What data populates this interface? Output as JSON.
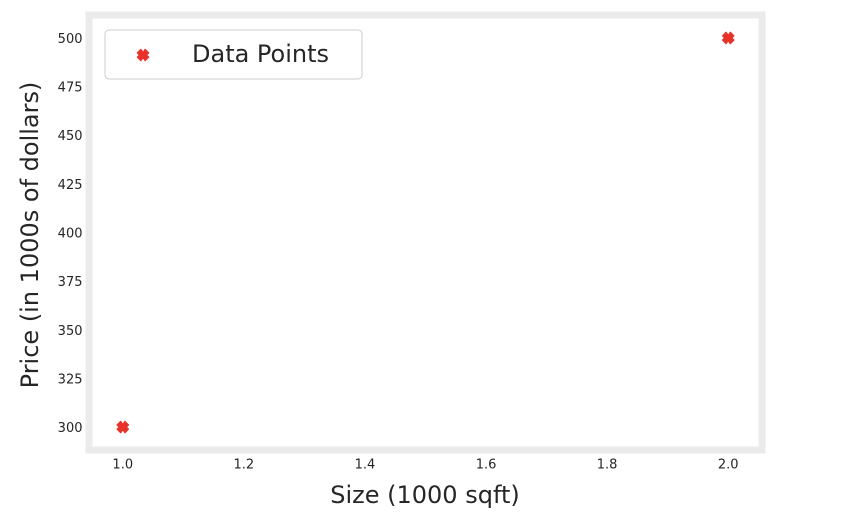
{
  "chart_data": {
    "type": "scatter",
    "title": "",
    "xlabel": "Size (1000 sqft)",
    "ylabel": "Price (in 1000s of dollars)",
    "xlim": [
      0.95,
      2.05
    ],
    "ylim": [
      290,
      510
    ],
    "xticks": [
      1.0,
      1.2,
      1.4,
      1.6,
      1.8,
      2.0
    ],
    "xtick_labels": [
      "1.0",
      "1.2",
      "1.4",
      "1.6",
      "1.8",
      "2.0"
    ],
    "yticks": [
      300,
      325,
      350,
      375,
      400,
      425,
      450,
      475,
      500
    ],
    "ytick_labels": [
      "300",
      "325",
      "350",
      "375",
      "400",
      "425",
      "450",
      "475",
      "500"
    ],
    "grid": false,
    "legend": {
      "position": "top-left"
    },
    "series": [
      {
        "name": "Data Points",
        "marker": "x-filled",
        "color": "#e8332a",
        "x": [
          1.0,
          2.0
        ],
        "y": [
          300,
          500
        ]
      }
    ]
  }
}
